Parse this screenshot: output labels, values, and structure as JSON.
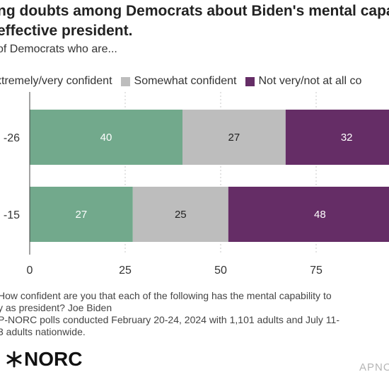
{
  "header": {
    "title_line1": "ng doubts among Democrats about Biden's mental capaci",
    "title_line2": "effective president.",
    "subtitle": " of Democrats who are..."
  },
  "legend": {
    "items": [
      {
        "label": "xtremely/very confident",
        "color": "#72a98c"
      },
      {
        "label": "Somewhat confident",
        "color": "#bdbdbd"
      },
      {
        "label": "Not very/not at all co",
        "color": "#652d66"
      }
    ]
  },
  "chart_data": {
    "type": "bar",
    "orientation": "horizontal",
    "stacked": true,
    "categories": [
      "-26",
      "-15"
    ],
    "series": [
      {
        "name": "xtremely/very confident",
        "values": [
          40,
          27
        ],
        "color": "#72a98c",
        "label_color": "#ffffff"
      },
      {
        "name": "Somewhat confident",
        "values": [
          27,
          25
        ],
        "color": "#bdbdbd",
        "label_color": "#222222"
      },
      {
        "name": "Not very/not at all co",
        "values": [
          32,
          48
        ],
        "color": "#652d66",
        "label_color": "#ffffff"
      }
    ],
    "x_ticks": [
      0,
      25,
      50,
      75
    ],
    "xlim": [
      0,
      100
    ],
    "grid": "vertical dashed"
  },
  "footnote": {
    "line1": " How confident are you that each of the following has the mental capability to",
    "line2": "y as president? Joe Biden",
    "line3": "P-NORC polls conducted February 20-24, 2024 with 1,101 adults and July 11-",
    "line4": "3 adults nationwide."
  },
  "brand": {
    "logo_text": "NORC",
    "credit": "APNO"
  }
}
